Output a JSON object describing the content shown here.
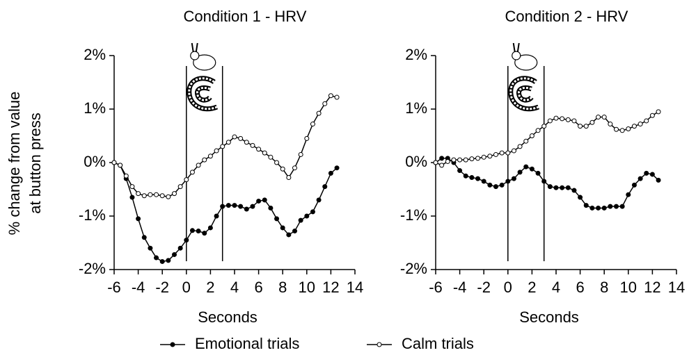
{
  "chart_data": [
    {
      "type": "line",
      "title": "Condition 1 - HRV",
      "xlabel": "Seconds",
      "ylabel": [
        "% change from value",
        "at button press"
      ],
      "x": [
        -6,
        -5.5,
        -5,
        -4.5,
        -4,
        -3.5,
        -3,
        -2.5,
        -2,
        -1.5,
        -1,
        -0.5,
        0,
        0.5,
        1,
        1.5,
        2,
        2.5,
        3,
        3.5,
        4,
        4.5,
        5,
        5.5,
        6,
        6.5,
        7,
        7.5,
        8,
        8.5,
        9,
        9.5,
        10,
        10.5,
        11,
        11.5,
        12,
        12.5
      ],
      "series": [
        {
          "name": "Emotional trials",
          "color": "#000000",
          "values": [
            0,
            -0.05,
            -0.3,
            -0.65,
            -1.05,
            -1.4,
            -1.6,
            -1.78,
            -1.85,
            -1.83,
            -1.72,
            -1.6,
            -1.45,
            -1.27,
            -1.28,
            -1.32,
            -1.22,
            -1.0,
            -0.82,
            -0.8,
            -0.8,
            -0.82,
            -0.87,
            -0.82,
            -0.72,
            -0.7,
            -0.85,
            -1.05,
            -1.22,
            -1.35,
            -1.28,
            -1.08,
            -1.0,
            -0.92,
            -0.7,
            -0.45,
            -0.2,
            -0.1
          ]
        },
        {
          "name": "Calm trials",
          "color": "#ffffff",
          "values": [
            0,
            -0.05,
            -0.25,
            -0.45,
            -0.58,
            -0.62,
            -0.6,
            -0.6,
            -0.62,
            -0.64,
            -0.58,
            -0.45,
            -0.32,
            -0.18,
            -0.05,
            0.05,
            0.12,
            0.22,
            0.3,
            0.38,
            0.48,
            0.45,
            0.38,
            0.32,
            0.25,
            0.18,
            0.1,
            0,
            -0.12,
            -0.28,
            -0.1,
            0.15,
            0.45,
            0.72,
            0.92,
            1.1,
            1.25,
            1.22
          ]
        }
      ],
      "xlim": [
        -6,
        14
      ],
      "xticks": [
        -6,
        -4,
        -2,
        0,
        2,
        4,
        6,
        8,
        10,
        12,
        14
      ],
      "ylim": [
        -2,
        2
      ],
      "yticks": [
        {
          "value": -2,
          "label": "-2%"
        },
        {
          "value": -1,
          "label": "-1%"
        },
        {
          "value": 0,
          "label": "0%"
        },
        {
          "value": 1,
          "label": "1%"
        },
        {
          "value": 2,
          "label": "2%"
        }
      ],
      "vlines": [
        0,
        3
      ]
    },
    {
      "type": "line",
      "title": "Condition 2 - HRV",
      "xlabel": "Seconds",
      "x": [
        -6,
        -5.5,
        -5,
        -4.5,
        -4,
        -3.5,
        -3,
        -2.5,
        -2,
        -1.5,
        -1,
        -0.5,
        0,
        0.5,
        1,
        1.5,
        2,
        2.5,
        3,
        3.5,
        4,
        4.5,
        5,
        5.5,
        6,
        6.5,
        7,
        7.5,
        8,
        8.5,
        9,
        9.5,
        10,
        10.5,
        11,
        11.5,
        12,
        12.5
      ],
      "series": [
        {
          "name": "Emotional trials",
          "color": "#000000",
          "values": [
            0,
            0.08,
            0.08,
            0,
            -0.15,
            -0.25,
            -0.28,
            -0.3,
            -0.35,
            -0.42,
            -0.45,
            -0.42,
            -0.35,
            -0.3,
            -0.18,
            -0.08,
            -0.12,
            -0.2,
            -0.35,
            -0.45,
            -0.47,
            -0.47,
            -0.47,
            -0.52,
            -0.65,
            -0.8,
            -0.85,
            -0.85,
            -0.85,
            -0.82,
            -0.82,
            -0.82,
            -0.6,
            -0.42,
            -0.3,
            -0.2,
            -0.22,
            -0.33
          ]
        },
        {
          "name": "Calm trials",
          "color": "#ffffff",
          "values": [
            0,
            -0.05,
            0.02,
            0.05,
            0.05,
            0.05,
            0.07,
            0.08,
            0.1,
            0.12,
            0.15,
            0.18,
            0.18,
            0.22,
            0.3,
            0.4,
            0.5,
            0.6,
            0.68,
            0.78,
            0.83,
            0.82,
            0.8,
            0.78,
            0.68,
            0.68,
            0.75,
            0.85,
            0.85,
            0.72,
            0.62,
            0.6,
            0.63,
            0.68,
            0.72,
            0.78,
            0.88,
            0.95
          ]
        }
      ],
      "xlim": [
        -6,
        14
      ],
      "xticks": [
        -6,
        -4,
        -2,
        0,
        2,
        4,
        6,
        8,
        10,
        12,
        14
      ],
      "ylim": [
        -2,
        2
      ],
      "yticks": [
        {
          "value": -2,
          "label": "-2%"
        },
        {
          "value": -1,
          "label": "-1%"
        },
        {
          "value": 0,
          "label": "0%"
        },
        {
          "value": 1,
          "label": "1%"
        },
        {
          "value": 2,
          "label": "2%"
        }
      ],
      "vlines": [
        0,
        3
      ]
    }
  ]
}
